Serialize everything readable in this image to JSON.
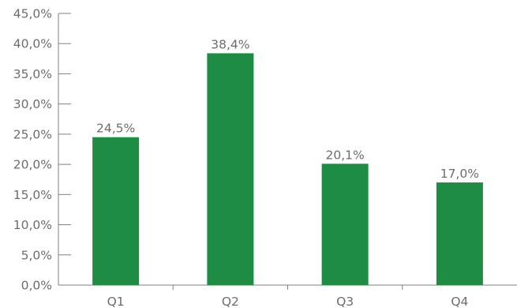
{
  "chart_data": {
    "type": "bar",
    "categories": [
      "Q1",
      "Q2",
      "Q3",
      "Q4"
    ],
    "values": [
      24.5,
      38.4,
      20.1,
      17.0
    ],
    "data_labels": [
      "24,5%",
      "38,4%",
      "20,1%",
      "17,0%"
    ],
    "y_ticks": [
      0,
      5,
      10,
      15,
      20,
      25,
      30,
      35,
      40,
      45
    ],
    "y_tick_labels": [
      "0,0%",
      "5,0%",
      "10,0%",
      "15,0%",
      "20,0%",
      "25,0%",
      "30,0%",
      "35,0%",
      "40,0%",
      "45,0%"
    ],
    "ylim": [
      0,
      45
    ],
    "title": "",
    "xlabel": "",
    "ylabel": "",
    "grid": false,
    "legend": "none",
    "bar_color": "#1e8c42",
    "axis_color": "#808080",
    "text_color": "#6d6d6d"
  }
}
